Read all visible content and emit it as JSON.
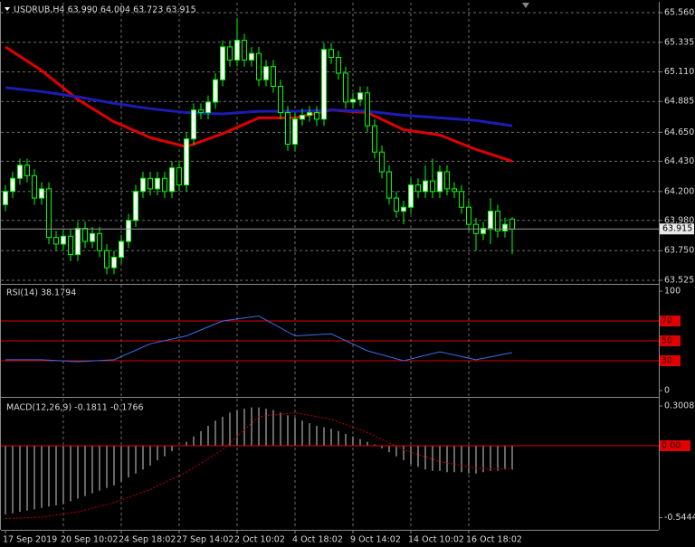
{
  "chart_data": [
    {
      "type": "candlestick",
      "title": "USDRUB,H4 63.990 64.004 63.723 63.915",
      "color": "#00ff00",
      "up_fill": "#ffffff",
      "down_fill": "#000000",
      "ohlc": [
        [
          64.1,
          64.25,
          64.05,
          64.2
        ],
        [
          64.2,
          64.35,
          64.15,
          64.3
        ],
        [
          64.3,
          64.45,
          64.25,
          64.4
        ],
        [
          64.4,
          64.45,
          64.27,
          64.32
        ],
        [
          64.32,
          64.37,
          64.1,
          64.15
        ],
        [
          64.15,
          64.27,
          64.1,
          64.22
        ],
        [
          64.22,
          64.27,
          63.8,
          63.85
        ],
        [
          63.85,
          63.9,
          63.75,
          63.8
        ],
        [
          63.8,
          63.91,
          63.75,
          63.86
        ],
        [
          63.86,
          63.91,
          63.67,
          63.72
        ],
        [
          63.72,
          63.97,
          63.67,
          63.92
        ],
        [
          63.92,
          63.97,
          63.77,
          63.82
        ],
        [
          63.82,
          63.93,
          63.77,
          63.88
        ],
        [
          63.88,
          63.93,
          63.7,
          63.75
        ],
        [
          63.75,
          63.8,
          63.57,
          63.62
        ],
        [
          63.62,
          63.75,
          63.57,
          63.7
        ],
        [
          63.7,
          63.87,
          63.65,
          63.82
        ],
        [
          63.82,
          64.03,
          63.77,
          63.98
        ],
        [
          63.98,
          64.25,
          63.93,
          64.2
        ],
        [
          64.2,
          64.35,
          64.15,
          64.3
        ],
        [
          64.3,
          64.35,
          64.17,
          64.22
        ],
        [
          64.22,
          64.35,
          64.17,
          64.3
        ],
        [
          64.3,
          64.35,
          64.15,
          64.2
        ],
        [
          64.2,
          64.43,
          64.15,
          64.38
        ],
        [
          64.38,
          64.43,
          64.2,
          64.25
        ],
        [
          64.25,
          64.65,
          64.2,
          64.6
        ],
        [
          64.6,
          64.87,
          64.55,
          64.82
        ],
        [
          64.82,
          64.87,
          64.75,
          64.8
        ],
        [
          64.8,
          64.93,
          64.75,
          64.88
        ],
        [
          64.88,
          65.1,
          64.83,
          65.05
        ],
        [
          65.05,
          65.35,
          65.0,
          65.3
        ],
        [
          65.3,
          65.35,
          65.15,
          65.2
        ],
        [
          65.2,
          65.52,
          65.15,
          65.35
        ],
        [
          65.35,
          65.4,
          65.15,
          65.2
        ],
        [
          65.2,
          65.3,
          65.15,
          65.25
        ],
        [
          65.25,
          65.3,
          65.0,
          65.05
        ],
        [
          65.05,
          65.2,
          65.0,
          65.15
        ],
        [
          65.15,
          65.2,
          64.95,
          65.0
        ],
        [
          65.0,
          65.05,
          64.75,
          64.8
        ],
        [
          64.8,
          64.85,
          64.51,
          64.56
        ],
        [
          64.56,
          64.8,
          64.51,
          64.75
        ],
        [
          64.75,
          64.83,
          64.7,
          64.78
        ],
        [
          64.78,
          64.85,
          64.73,
          64.8
        ],
        [
          64.8,
          64.85,
          64.7,
          64.75
        ],
        [
          64.75,
          65.33,
          64.7,
          65.28
        ],
        [
          65.28,
          65.33,
          65.17,
          65.22
        ],
        [
          65.22,
          65.27,
          65.05,
          65.1
        ],
        [
          65.1,
          65.15,
          64.83,
          64.88
        ],
        [
          64.88,
          64.95,
          64.83,
          64.9
        ],
        [
          64.9,
          65.0,
          64.85,
          64.95
        ],
        [
          64.95,
          65.0,
          64.65,
          64.7
        ],
        [
          64.7,
          64.75,
          64.45,
          64.5
        ],
        [
          64.5,
          64.55,
          64.3,
          64.35
        ],
        [
          64.35,
          64.4,
          64.1,
          64.15
        ],
        [
          64.15,
          64.2,
          64.0,
          64.05
        ],
        [
          64.05,
          64.13,
          63.95,
          64.08
        ],
        [
          64.08,
          64.3,
          64.03,
          64.25
        ],
        [
          64.25,
          64.3,
          64.15,
          64.2
        ],
        [
          64.2,
          64.4,
          64.15,
          64.28
        ],
        [
          64.28,
          64.45,
          64.15,
          64.2
        ],
        [
          64.2,
          64.4,
          64.15,
          64.35
        ],
        [
          64.35,
          64.4,
          64.17,
          64.22
        ],
        [
          64.22,
          64.27,
          64.15,
          64.2
        ],
        [
          64.2,
          64.25,
          64.03,
          64.08
        ],
        [
          64.08,
          64.13,
          63.9,
          63.95
        ],
        [
          63.95,
          64.0,
          63.75,
          63.88
        ],
        [
          63.88,
          63.97,
          63.83,
          63.92
        ],
        [
          63.92,
          64.15,
          63.8,
          64.05
        ],
        [
          64.05,
          64.1,
          63.85,
          63.9
        ],
        [
          63.9,
          64.0,
          63.85,
          63.95
        ],
        [
          63.99,
          64.004,
          63.723,
          63.915
        ]
      ],
      "series": [
        {
          "color": "#e00000",
          "x": [
            0,
            5,
            10,
            15,
            20,
            25,
            30,
            35,
            40,
            45,
            50,
            55,
            60,
            65,
            70
          ],
          "values": [
            65.3,
            65.12,
            64.9,
            64.73,
            64.61,
            64.54,
            64.64,
            64.76,
            64.76,
            64.82,
            64.8,
            64.67,
            64.63,
            64.52,
            64.43
          ]
        },
        {
          "color": "#1c1cb4",
          "x": [
            0,
            5,
            10,
            15,
            20,
            25,
            30,
            35,
            40,
            45,
            50,
            55,
            60,
            65,
            70
          ],
          "values": [
            64.99,
            64.96,
            64.92,
            64.87,
            64.83,
            64.8,
            64.79,
            64.81,
            64.81,
            64.82,
            64.81,
            64.78,
            64.76,
            64.74,
            64.7
          ]
        }
      ],
      "ylim": [
        63.504,
        65.636
      ],
      "yticks": [
        {
          "value": 65.56,
          "label": "65.560"
        },
        65.335,
        {
          "value": 65.11,
          "label": "65.110"
        },
        64.885,
        {
          "value": 64.65,
          "label": "64.650"
        },
        {
          "value": 64.43,
          "label": "64.430"
        },
        {
          "value": 64.2,
          "label": "64.200"
        },
        {
          "value": 63.98,
          "label": "63.980"
        },
        {
          "value": 63.75,
          "label": "63.750"
        },
        63.525
      ],
      "last_price": {
        "value": 63.915,
        "label": "63.915"
      },
      "xticks": [
        {
          "value": 0,
          "label": "17 Sep 2019"
        },
        {
          "value": 8,
          "label": "20 Sep 10:02"
        },
        {
          "value": 16,
          "label": "24 Sep 18:02"
        },
        {
          "value": 24,
          "label": "27 Sep 14:02"
        },
        {
          "value": 32,
          "label": "2 Oct 10:02"
        },
        {
          "value": 40,
          "label": "4 Oct 18:02"
        },
        {
          "value": 48,
          "label": "9 Oct 14:02"
        },
        {
          "value": 56,
          "label": "14 Oct 10:02"
        },
        {
          "value": 64,
          "label": "16 Oct 18:02"
        }
      ],
      "grid": true
    },
    {
      "type": "line",
      "title": "RSI(14) 38.1794",
      "color": "#3c6ee6",
      "x": [
        0,
        5,
        10,
        15,
        20,
        25,
        30,
        35,
        40,
        45,
        50,
        55,
        60,
        65,
        70
      ],
      "values": [
        31,
        31,
        29,
        31,
        47,
        55,
        70,
        75,
        55,
        57,
        40,
        30,
        39,
        31,
        38.1794
      ],
      "ylim": [
        -5.5,
        105.5
      ],
      "yticks": [
        0,
        100
      ],
      "levels": [
        70,
        50,
        30
      ],
      "level_color": "#e00000"
    },
    {
      "type": "macd",
      "title": "MACD(12,26,9) -0.1811 -0.1766",
      "color": "#d0d0d0",
      "histogram": [
        -0.52,
        -0.51,
        -0.5,
        -0.49,
        -0.48,
        -0.47,
        -0.46,
        -0.45,
        -0.44,
        -0.42,
        -0.4,
        -0.38,
        -0.36,
        -0.34,
        -0.32,
        -0.3,
        -0.27,
        -0.24,
        -0.21,
        -0.18,
        -0.15,
        -0.11,
        -0.08,
        -0.04,
        0.0,
        0.03,
        0.07,
        0.11,
        0.15,
        0.19,
        0.22,
        0.25,
        0.27,
        0.28,
        0.29,
        0.29,
        0.28,
        0.27,
        0.25,
        0.23,
        0.21,
        0.19,
        0.17,
        0.15,
        0.14,
        0.13,
        0.11,
        0.09,
        0.07,
        0.05,
        0.03,
        0.01,
        -0.02,
        -0.05,
        -0.08,
        -0.11,
        -0.14,
        -0.16,
        -0.18,
        -0.19,
        -0.19,
        -0.2,
        -0.2,
        -0.2,
        -0.21,
        -0.21,
        -0.2,
        -0.19,
        -0.19,
        -0.18,
        -0.1811
      ],
      "signal": {
        "color": "#c00000",
        "x": [
          0,
          5,
          10,
          15,
          20,
          25,
          30,
          35,
          40,
          45,
          50,
          55,
          60,
          65,
          70
        ],
        "values": [
          -0.55,
          -0.54,
          -0.5,
          -0.43,
          -0.33,
          -0.2,
          -0.03,
          0.22,
          0.25,
          0.2,
          0.1,
          -0.03,
          -0.12,
          -0.17,
          -0.1766
        ]
      },
      "ylim": [
        -0.629,
        0.3555
      ],
      "yticks": [
        0.3008,
        -0.5444
      ],
      "levels": [
        {
          "value": 0,
          "label": "0.00"
        }
      ],
      "level_color": "#e00000"
    }
  ]
}
